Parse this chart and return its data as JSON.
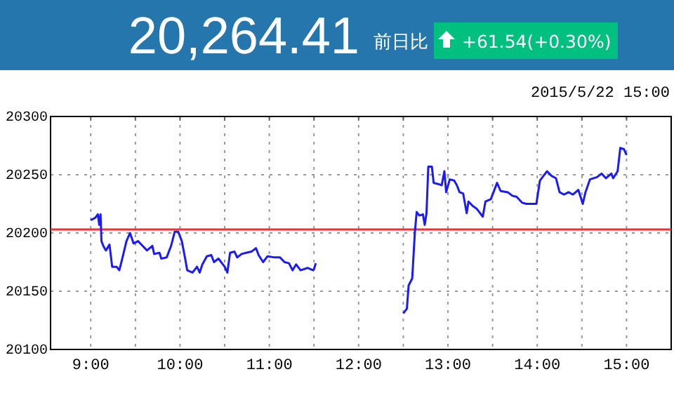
{
  "chart_data": {
    "type": "line",
    "title": "20,264.41",
    "annotations": [
      "前日比",
      "+61.54(+0.30%)",
      "2015/5/22 15:00"
    ],
    "xlim": [
      8.55,
      15.5
    ],
    "xticks": [
      {
        "value": 9,
        "label": "9:00"
      },
      {
        "value": 9.5,
        "label": null
      },
      {
        "value": 10,
        "label": "10:00"
      },
      {
        "value": 10.5,
        "label": null
      },
      {
        "value": 11,
        "label": "11:00"
      },
      {
        "value": 11.5,
        "label": null
      },
      {
        "value": 12,
        "label": "12:00"
      },
      {
        "value": 12.5,
        "label": null
      },
      {
        "value": 13,
        "label": "13:00"
      },
      {
        "value": 13.5,
        "label": null
      },
      {
        "value": 14,
        "label": "14:00"
      },
      {
        "value": 14.5,
        "label": null
      },
      {
        "value": 15,
        "label": "15:00"
      }
    ],
    "ylim": [
      20100,
      20300
    ],
    "yticks": [
      20100,
      20150,
      20200,
      20250,
      20300
    ],
    "grid": true,
    "marker": "none",
    "line_style": "solid",
    "ref_lines": [
      {
        "axis": "y",
        "value": 20203,
        "color": "#ff2a2a"
      }
    ],
    "series": [
      {
        "color": "#1a1aff",
        "x": [
          9.0,
          9.05,
          9.08,
          9.095,
          9.11,
          9.12,
          9.14,
          9.17,
          9.21,
          9.24,
          9.29,
          9.32,
          9.35,
          9.4,
          9.44,
          9.48,
          9.53,
          9.58,
          9.63,
          9.69,
          9.71,
          9.77,
          9.79,
          9.85,
          9.9,
          9.94,
          9.98,
          10.02,
          10.06,
          10.08,
          10.14,
          10.19,
          10.22,
          10.25,
          10.3,
          10.35,
          10.38,
          10.43,
          10.46,
          10.5,
          10.53,
          10.56,
          10.61,
          10.64,
          10.69,
          10.74,
          10.8,
          10.85,
          10.88,
          10.93,
          10.98,
          11.06,
          11.12,
          11.17,
          11.22,
          11.26,
          11.3,
          11.35,
          11.43,
          11.49,
          11.5,
          11.52,
          12.0,
          12.5,
          12.54,
          12.56,
          12.6,
          12.63,
          12.65,
          12.68,
          12.72,
          12.74,
          12.76,
          12.78,
          12.82,
          12.84,
          12.89,
          12.93,
          12.96,
          12.98,
          13.02,
          13.07,
          13.1,
          13.13,
          13.17,
          13.21,
          13.23,
          13.28,
          13.32,
          13.39,
          13.42,
          13.48,
          13.55,
          13.59,
          13.67,
          13.72,
          13.77,
          13.83,
          13.88,
          13.99,
          14.03,
          14.07,
          14.11,
          14.16,
          14.21,
          14.25,
          14.3,
          14.35,
          14.4,
          14.46,
          14.51,
          14.54,
          14.59,
          14.67,
          14.72,
          14.77,
          14.83,
          14.85,
          14.9,
          14.93,
          14.97,
          15.0
        ],
        "values": [
          20211,
          20213,
          20216,
          20207,
          20216,
          20193,
          20189,
          20185,
          20190,
          20171,
          20171,
          20168,
          20177,
          20193,
          20200,
          20191,
          20193,
          20189,
          20185,
          20189,
          20182,
          20183,
          20178,
          20179,
          20189,
          20201,
          20201,
          20193,
          20177,
          20168,
          20166,
          20171,
          20166,
          20173,
          20180,
          20181,
          20175,
          20178,
          20175,
          20171,
          20166,
          20183,
          20184,
          20179,
          20182,
          20183,
          20184,
          20187,
          20181,
          20175,
          20180,
          20179,
          20179,
          20175,
          20174,
          20168,
          20173,
          20168,
          20170,
          20168,
          20169,
          20174,
          null,
          20131,
          20135,
          20155,
          20161,
          20201,
          20218,
          20215,
          20216,
          20207,
          20217,
          20257,
          20257,
          20243,
          20242,
          20241,
          20253,
          20235,
          20246,
          20245,
          20241,
          20235,
          20234,
          20217,
          20227,
          20223,
          20221,
          20214,
          20227,
          20229,
          20243,
          20236,
          20235,
          20232,
          20231,
          20226,
          20225,
          20225,
          20245,
          20249,
          20253,
          20249,
          20247,
          20235,
          20233,
          20235,
          20233,
          20237,
          20225,
          20235,
          20246,
          20248,
          20251,
          20247,
          20251,
          20247,
          20253,
          20273,
          20272,
          20267
        ]
      }
    ]
  }
}
